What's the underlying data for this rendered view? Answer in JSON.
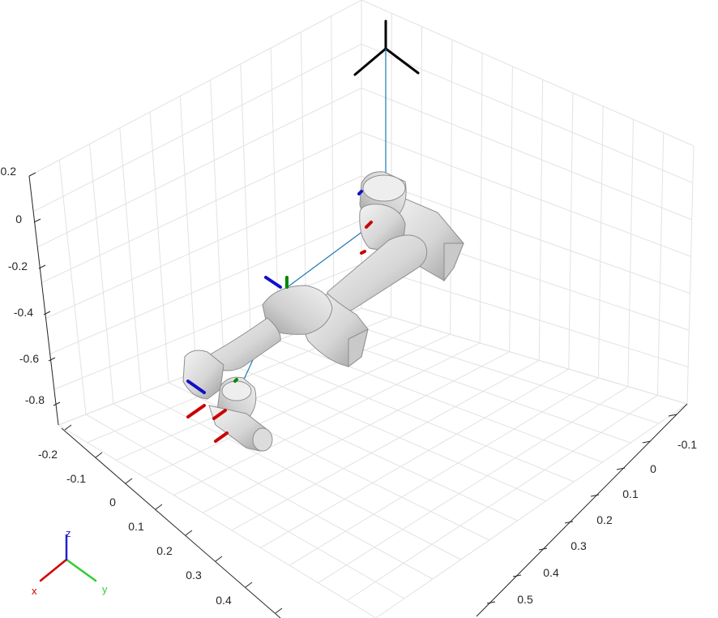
{
  "axes": {
    "z_ticks": [
      "0.2",
      "0",
      "-0.2",
      "-0.4",
      "-0.6",
      "-0.8"
    ],
    "x_ticks": [
      "-0.2",
      "-0.1",
      "0",
      "0.1",
      "0.2",
      "0.3",
      "0.4"
    ],
    "y_ticks": [
      "-0.1",
      "0",
      "0.1",
      "0.2",
      "0.3",
      "0.4",
      "0.5"
    ],
    "grid": true
  },
  "triad": {
    "x_label": "x",
    "y_label": "y",
    "z_label": "z",
    "x_color": "#d40000",
    "y_color": "#33cc33",
    "z_color": "#2020d0"
  },
  "colors": {
    "link": "#d8d8d8",
    "link_shade": "#a9a9a9",
    "grid": "#e2e2e2",
    "connector": "#1f77b4",
    "frame_red": "#cc0000",
    "frame_green": "#008800",
    "frame_blue": "#1010c8"
  }
}
